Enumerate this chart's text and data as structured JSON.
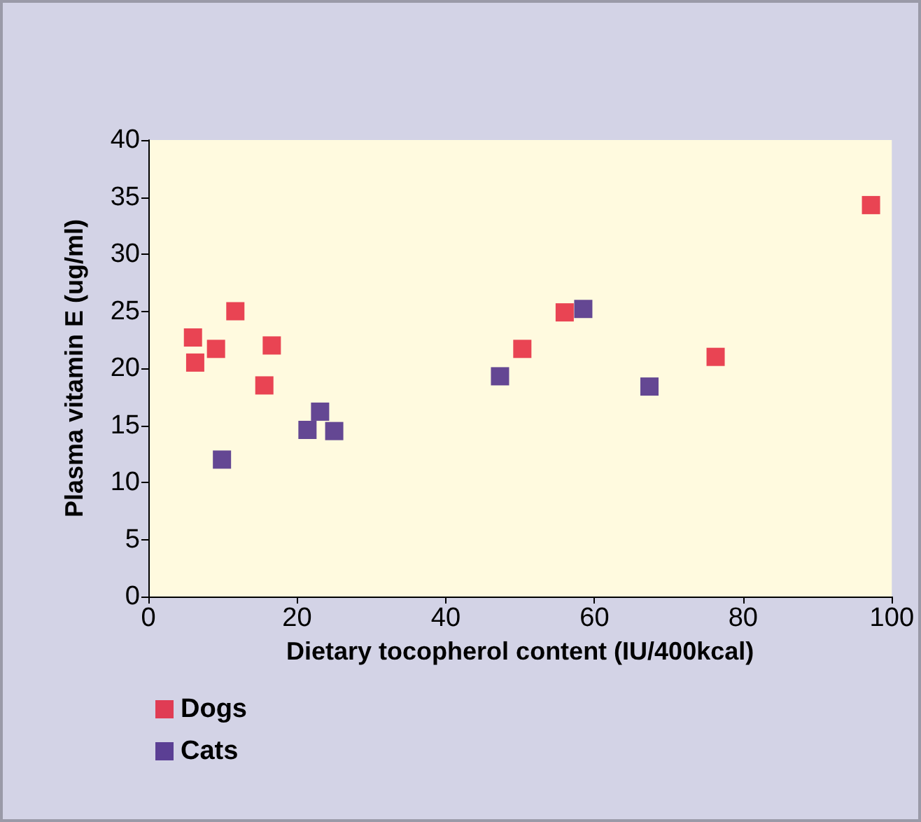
{
  "chart_data": {
    "type": "scatter",
    "xlabel": "Dietary tocopherol content (IU/400kcal)",
    "ylabel": "Plasma vitamin E (ug/ml)",
    "xlim": [
      0,
      100
    ],
    "xticks": [
      0,
      20,
      40,
      60,
      80,
      100
    ],
    "ylim": [
      0,
      40
    ],
    "yticks": [
      0,
      5,
      10,
      15,
      20,
      25,
      30,
      35,
      40
    ],
    "grid": false,
    "legend": "bottom left",
    "marker": "square",
    "series": [
      {
        "name": "Dogs",
        "color": "#e3162f",
        "x": [
          6,
          6.3,
          9.1,
          11.7,
          15.6,
          16.6,
          50.3,
          56,
          76.3,
          97.2
        ],
        "values": [
          22.7,
          20.5,
          21.7,
          25,
          18.5,
          22,
          21.7,
          24.9,
          21,
          34.3
        ]
      },
      {
        "name": "Cats",
        "color": "#3d1a80",
        "x": [
          9.9,
          21.4,
          23.1,
          25,
          47.3,
          58.5,
          67.4
        ],
        "values": [
          12,
          14.6,
          16.2,
          14.5,
          19.3,
          25.2,
          18.4
        ]
      }
    ]
  }
}
